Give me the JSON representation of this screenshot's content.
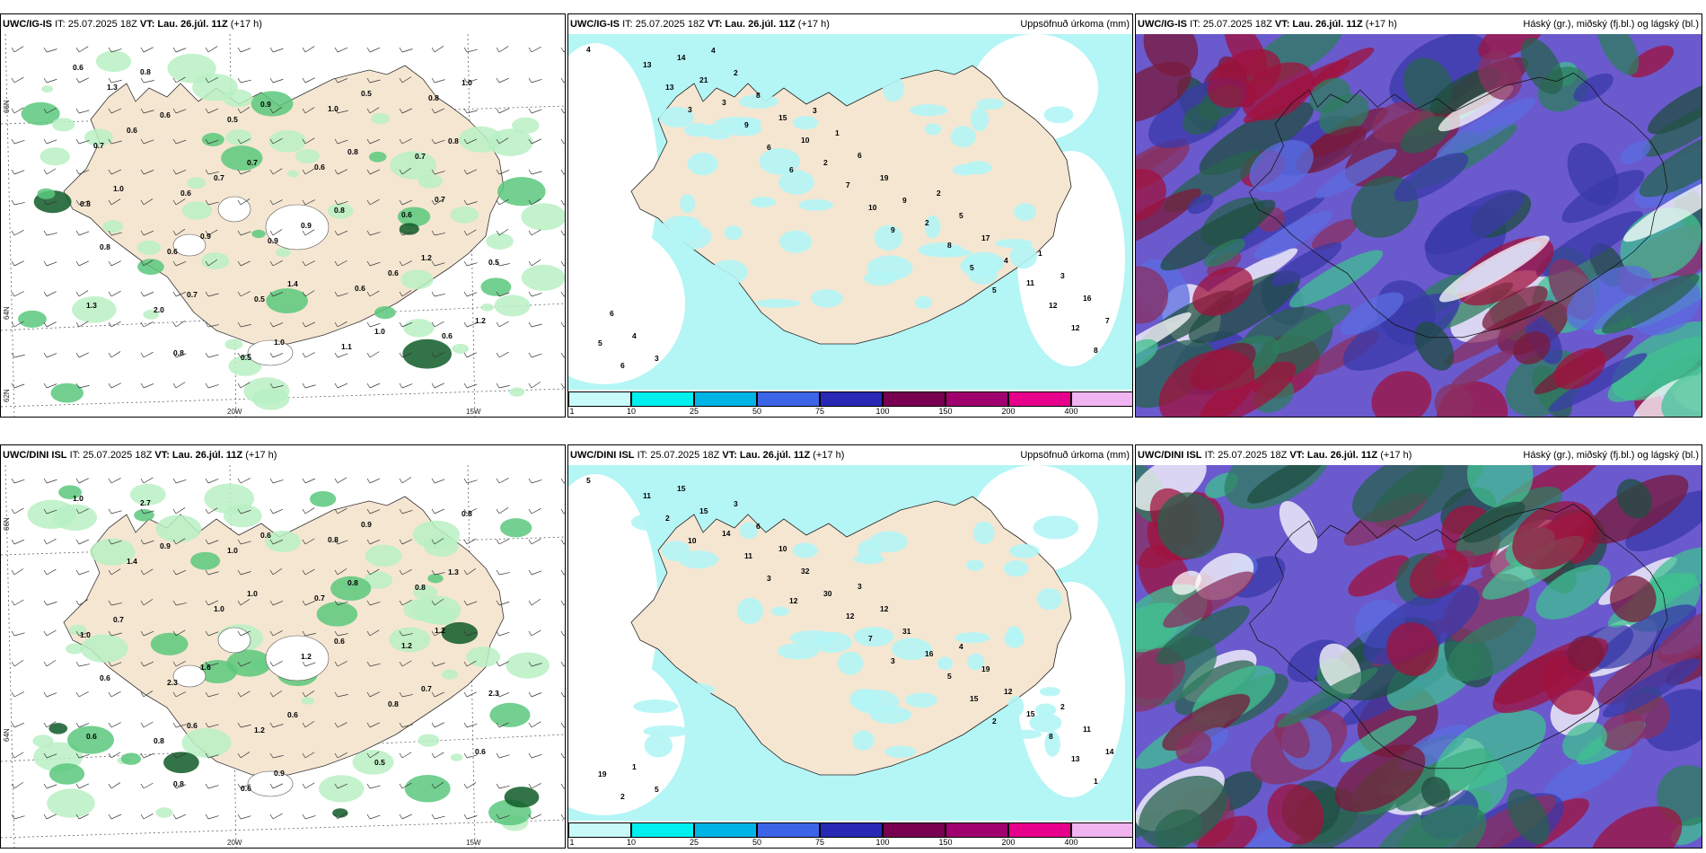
{
  "panels": [
    {
      "id": "p1",
      "type": "precip_wind",
      "header": {
        "model": "UWC/IG-IS",
        "it": "IT: 25.07.2025 18Z",
        "vt_label": "VT:",
        "vt_value": "Lau. 26.júl. 11Z",
        "lead": "(+17 h)"
      },
      "right_title": "",
      "grid_labels": {
        "top_lat": "66N",
        "mid_lat": "64N",
        "bot_lat": "62N",
        "lon_left": "20W",
        "lon_right": "15W"
      },
      "values": [
        "0.6",
        "0.6",
        "0.7",
        "0.8",
        "1.2",
        "1.3",
        "0.8",
        "0.9",
        "0.8",
        "0.7",
        "0.8",
        "0.7",
        "1.0",
        "0.5",
        "0.8",
        "1.0",
        "0.9",
        "1.4",
        "1.0",
        "1.0",
        "0.6",
        "0.7",
        "0.9",
        "0.6",
        "1.2",
        "0.8",
        "0.5",
        "0.6",
        "0.6",
        "0.5",
        "2.0",
        "0.5",
        "1.0",
        "0.7",
        "0.8",
        "0.6",
        "0.5",
        "1.1",
        "0.8",
        "0.7",
        "0.6",
        "0.9",
        "0.6",
        "0.6",
        "1.3"
      ]
    },
    {
      "id": "p2",
      "type": "accum_precip",
      "header": {
        "model": "UWC/IG-IS",
        "it": "IT: 25.07.2025 18Z",
        "vt_label": "VT:",
        "vt_value": "Lau. 26.júl. 11Z",
        "lead": "(+17 h)"
      },
      "right_title": "Uppsöfnuð úrkoma (mm)",
      "values": [
        "4",
        "3",
        "6",
        "9",
        "5",
        "8",
        "13",
        "6",
        "10",
        "5",
        "12",
        "13",
        "9",
        "7",
        "8",
        "12",
        "6",
        "3",
        "2",
        "2",
        "11",
        "5",
        "21",
        "10",
        "9",
        "4",
        "7",
        "14",
        "15",
        "19",
        "17",
        "16",
        "3",
        "8",
        "6",
        "5",
        "3",
        "4",
        "2",
        "1",
        "2",
        "1",
        "6",
        "4",
        "3"
      ]
    },
    {
      "id": "p3",
      "type": "cloud_cover",
      "header": {
        "model": "UWC/IG-IS",
        "it": "IT: 25.07.2025 18Z",
        "vt_label": "VT:",
        "vt_value": "Lau. 26.júl. 11Z",
        "lead": "(+17 h)"
      },
      "right_title": "Háský (gr.), miðský (fj.bl.) og lágský (bl.)"
    },
    {
      "id": "p4",
      "type": "precip_wind",
      "header": {
        "model": "UWC/DINI ISL",
        "it": "IT: 25.07.2025 18Z",
        "vt_label": "VT:",
        "vt_value": "Lau. 26.júl. 11Z",
        "lead": "(+17 h)"
      },
      "right_title": "",
      "grid_labels": {
        "top_lat": "66N",
        "mid_lat": "64N",
        "bot_lat": "",
        "lon_left": "20W",
        "lon_right": "15W"
      },
      "values": [
        "1.0",
        "0.9",
        "1.0",
        "0.6",
        "0.7",
        "0.6",
        "0.8",
        "0.6",
        "0.8",
        "1.2",
        "0.6",
        "0.6",
        "0.9",
        "0.9",
        "1.3",
        "0.7",
        "1.6",
        "0.6",
        "0.5",
        "0.8",
        "1.4",
        "1.0",
        "1.2",
        "0.8",
        "0.6",
        "2.7",
        "1.0",
        "0.7",
        "1.2",
        "2.3",
        "0.8",
        "0.6",
        "0.8",
        "0.8",
        "1.0",
        "2.3",
        "1.2"
      ]
    },
    {
      "id": "p5",
      "type": "accum_precip",
      "header": {
        "model": "UWC/DINI ISL",
        "it": "IT: 25.07.2025 18Z",
        "vt_label": "VT:",
        "vt_value": "Lau. 26.júl. 11Z",
        "lead": "(+17 h)"
      },
      "right_title": "Uppsöfnuð úrkoma (mm)",
      "values": [
        "5",
        "10",
        "12",
        "3",
        "2",
        "1",
        "2",
        "3",
        "7",
        "15",
        "13",
        "11",
        "11",
        "12",
        "5",
        "8",
        "2",
        "14",
        "30",
        "16",
        "15",
        "19",
        "15",
        "32",
        "31",
        "12",
        "14",
        "15",
        "10",
        "12",
        "19",
        "11",
        "5",
        "6",
        "3",
        "4",
        "2",
        "1",
        "3"
      ]
    },
    {
      "id": "p6",
      "type": "cloud_cover",
      "header": {
        "model": "UWC/DINI ISL",
        "it": "IT: 25.07.2025 18Z",
        "vt_label": "VT:",
        "vt_value": "Lau. 26.júl. 11Z",
        "lead": "(+17 h)"
      },
      "right_title": "Háský (gr.), miðský (fj.bl.) og lágský (bl.)"
    }
  ],
  "colorbar": {
    "labels": [
      "1",
      "10",
      "25",
      "50",
      "75",
      "100",
      "150",
      "200",
      "400"
    ],
    "colors": [
      "#c8fafa",
      "#00f0f0",
      "#00b4e6",
      "#3c64e6",
      "#2828b4",
      "#780050",
      "#a0006e",
      "#e6008c",
      "#f0b4f0"
    ]
  },
  "colors": {
    "land": "#f5e6d2",
    "precip_light": "#b9f0c3",
    "precip_mid": "#5ac87d",
    "precip_dark": "#0f5a28",
    "accum_light": "#b4f5f5"
  }
}
